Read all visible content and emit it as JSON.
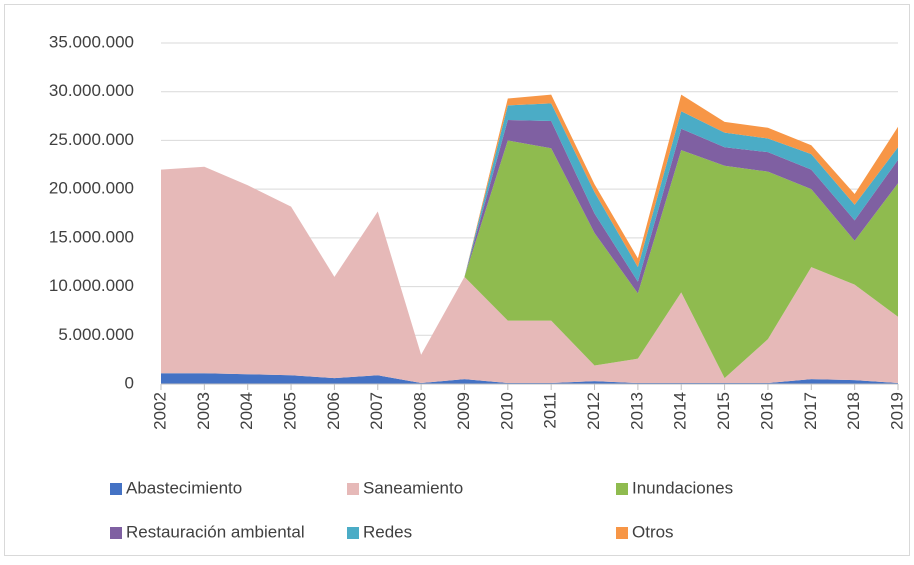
{
  "chart_data": {
    "type": "stacked_area",
    "categories": [
      "2002",
      "2003",
      "2004",
      "2005",
      "2006",
      "2007",
      "2008",
      "2009",
      "2010",
      "2011",
      "2012",
      "2013",
      "2014",
      "2015",
      "2016",
      "2017",
      "2018",
      "2019"
    ],
    "series": [
      {
        "name": "Abastecimiento",
        "color": "#4472c4",
        "values": [
          1100000,
          1100000,
          1000000,
          900000,
          600000,
          900000,
          100000,
          500000,
          100000,
          100000,
          300000,
          100000,
          100000,
          100000,
          100000,
          500000,
          400000,
          100000
        ]
      },
      {
        "name": "Saneamiento",
        "color": "#e6b9b8",
        "values": [
          20900000,
          21200000,
          19400000,
          17300000,
          10400000,
          16800000,
          2900000,
          10500000,
          6400000,
          6400000,
          1600000,
          2500000,
          9300000,
          500000,
          4500000,
          11500000,
          9800000,
          6800000
        ]
      },
      {
        "name": "Inundaciones",
        "color": "#8fbb4f",
        "values": [
          0,
          0,
          0,
          0,
          0,
          0,
          0,
          0,
          18500000,
          17700000,
          13600000,
          6700000,
          14600000,
          21800000,
          17200000,
          8000000,
          4500000,
          13700000
        ]
      },
      {
        "name": "Restauración ambiental",
        "color": "#7f60a2",
        "values": [
          0,
          0,
          0,
          0,
          0,
          0,
          0,
          0,
          2100000,
          2800000,
          2000000,
          1200000,
          2200000,
          1900000,
          2000000,
          2000000,
          2100000,
          2400000
        ]
      },
      {
        "name": "Redes",
        "color": "#4bacc6",
        "values": [
          0,
          0,
          0,
          0,
          0,
          0,
          0,
          0,
          1500000,
          1800000,
          2200000,
          1500000,
          1800000,
          1500000,
          1400000,
          1600000,
          1600000,
          1300000
        ]
      },
      {
        "name": "Otros",
        "color": "#f79646",
        "values": [
          0,
          0,
          0,
          0,
          0,
          0,
          0,
          0,
          700000,
          900000,
          800000,
          900000,
          1700000,
          1100000,
          1100000,
          900000,
          1100000,
          2100000
        ]
      }
    ],
    "ylim": [
      0,
      35000000
    ],
    "yticks": [
      0,
      {
        "value": 5000000,
        "label": "5.000.000"
      },
      {
        "value": 10000000,
        "label": "10.000.000"
      },
      {
        "value": 15000000,
        "label": "15.000.000"
      },
      {
        "value": 20000000,
        "label": "20.000.000"
      },
      {
        "value": 25000000,
        "label": "25.000.000"
      },
      {
        "value": 30000000,
        "label": "30.000.000"
      },
      {
        "value": 35000000,
        "label": "35.000.000"
      }
    ],
    "grid": true
  }
}
